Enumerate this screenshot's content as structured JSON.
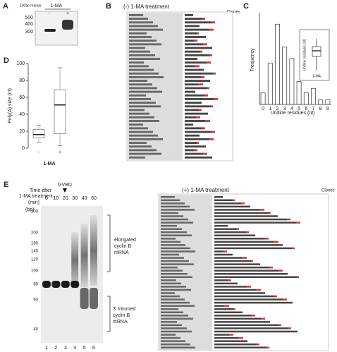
{
  "panels": {
    "a": {
      "label": "A",
      "marker": "100bp marker",
      "treatment": "1-MA",
      "lanes": [
        "-",
        "+"
      ],
      "sizes": [
        "500",
        "400",
        "300"
      ]
    },
    "b": {
      "label": "B",
      "title": "(-) 1-MA treatment",
      "clones": "Clones"
    },
    "c": {
      "label": "C",
      "ylabel": "Frequency",
      "xlabel": "Uridine residues (nt)",
      "inset_ylabel": "Uridine residues (nt)",
      "inset_xlabel": "1-MA",
      "chart_data": {
        "type": "bar",
        "categories": [
          "0",
          "1",
          "2",
          "3",
          "4",
          "5",
          "6",
          "7",
          "8",
          "9"
        ],
        "values": [
          0.05,
          0.18,
          0.35,
          0.25,
          0.2,
          0.1,
          0.05,
          0.07,
          0.02,
          0.02
        ],
        "ylim": [
          0,
          0.4
        ],
        "color": "#ffffff"
      }
    },
    "d": {
      "label": "D",
      "ylabel": "Poly(A) size (nt)",
      "xlabel": "1-MA",
      "chart_data": {
        "type": "box",
        "categories": [
          "-",
          "+"
        ],
        "ylim": [
          0,
          100
        ],
        "yticks": [
          0,
          20,
          40,
          60,
          80,
          100
        ],
        "series": [
          {
            "name": "-",
            "values": [
              7,
              12,
              16,
              22,
              27
            ]
          },
          {
            "name": "+",
            "values": [
              3,
              17,
              51,
              69,
              95
            ]
          }
        ]
      }
    },
    "e": {
      "label": "E",
      "time": [
        "Time after",
        "1-MA treatment",
        "(min)"
      ],
      "times": [
        "0",
        "10",
        "20",
        "30",
        "40",
        "60"
      ],
      "gvbd": "GVBD",
      "unit": "(bp)",
      "markers": [
        "300",
        "200",
        "160",
        "140",
        "120",
        "100",
        "80",
        "60",
        "40"
      ],
      "elongated": [
        "elongated",
        "cyclin B",
        "mRNA"
      ],
      "trimmed": [
        "3' trimmed",
        "cyclin B",
        "mRNA"
      ],
      "lane_numbers": [
        "1",
        "2",
        "3",
        "4",
        "5",
        "6"
      ]
    },
    "f": {
      "title": "(+) 1-MA treatment",
      "clones": "Clones"
    }
  }
}
